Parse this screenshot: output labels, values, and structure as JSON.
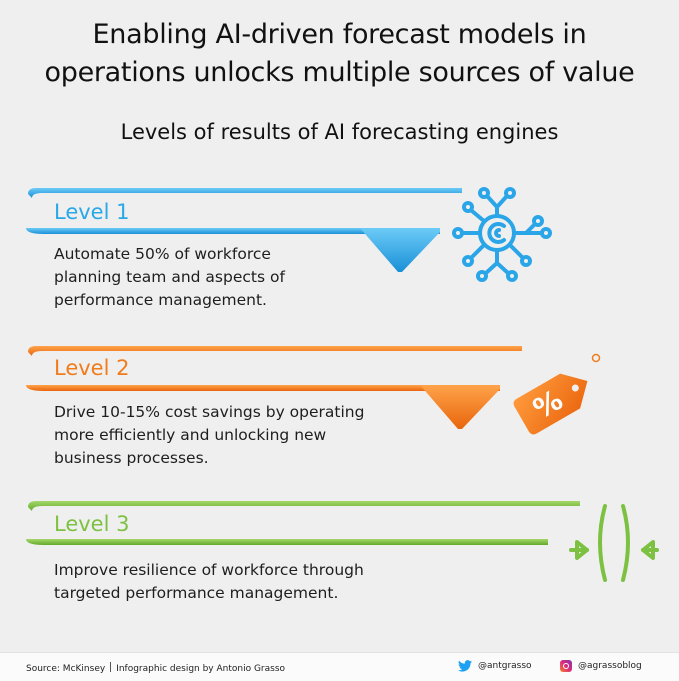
{
  "header": {
    "title_line1": "Enabling AI-driven forecast models in",
    "title_line2": "operations unlocks multiple sources of value",
    "subtitle": "Levels of results of AI forecasting engines"
  },
  "levels": [
    {
      "label": "Level 1",
      "description": [
        "Automate 50% of workforce",
        "planning team and aspects of",
        "performance management."
      ],
      "color": "#29a8e8",
      "icon": "ai-circuit-icon"
    },
    {
      "label": "Level 2",
      "description": [
        "Drive 10-15% cost savings by operating",
        "more efficiently and unlocking new",
        "business processes."
      ],
      "color": "#f07c1c",
      "icon": "percent-tag-icon"
    },
    {
      "label": "Level 3",
      "description": [
        "Improve resilience of workforce through",
        "targeted performance management."
      ],
      "color": "#7dc142",
      "icon": "compress-arrows-icon"
    }
  ],
  "footer": {
    "source": "Source: McKinsey",
    "credit": "Infographic design by Antonio Grasso",
    "twitter": "@antgrasso",
    "instagram": "@agrassoblog"
  }
}
